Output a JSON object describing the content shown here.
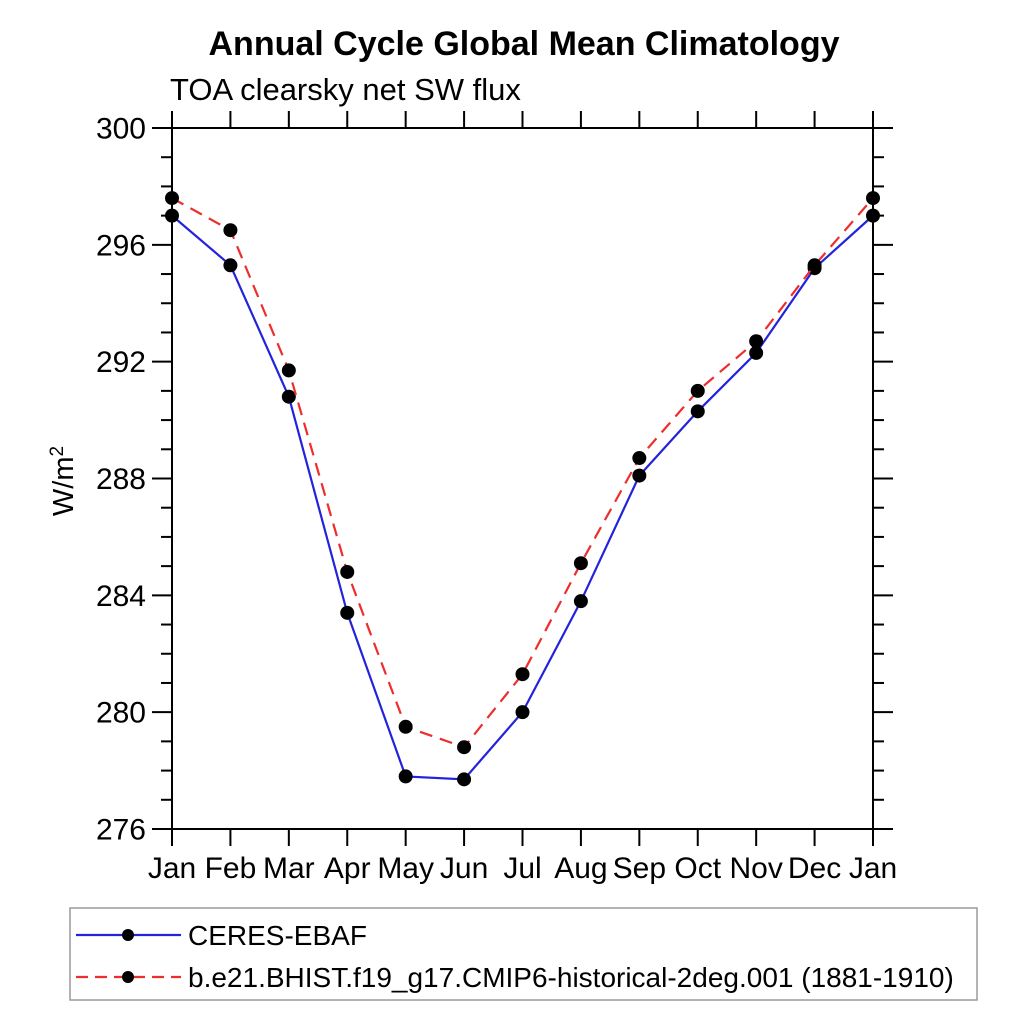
{
  "chart_data": {
    "type": "line",
    "title": "Annual Cycle Global Mean Climatology",
    "subtitle": "TOA clearsky net SW flux",
    "ylabel": "W/m²",
    "ylabel_base": "W/m",
    "ylabel_exp": "2",
    "xlabel": "",
    "categories": [
      "Jan",
      "Feb",
      "Mar",
      "Apr",
      "May",
      "Jun",
      "Jul",
      "Aug",
      "Sep",
      "Oct",
      "Nov",
      "Dec",
      "Jan"
    ],
    "series": [
      {
        "name": "CERES-EBAF",
        "color": "#2323dc",
        "line_style": "solid",
        "marker": "filled-circle",
        "marker_color": "#000000",
        "values": [
          297.0,
          295.3,
          290.8,
          283.4,
          277.8,
          277.7,
          280.0,
          283.8,
          288.1,
          290.3,
          292.3,
          295.2,
          297.0
        ]
      },
      {
        "name": "b.e21.BHIST.f19_g17.CMIP6-historical-2deg.001 (1881-1910)",
        "color": "#ee2d2d",
        "line_style": "dashed",
        "marker": "filled-circle",
        "marker_color": "#000000",
        "values": [
          297.6,
          296.5,
          291.7,
          284.8,
          279.5,
          278.8,
          281.3,
          285.1,
          288.7,
          291.0,
          292.7,
          295.3,
          297.6
        ]
      }
    ],
    "ylim": [
      276,
      300
    ],
    "y_major_step": 4,
    "y_minor_step": 1,
    "y_major_tick_labels": [
      "276",
      "280",
      "284",
      "288",
      "292",
      "296",
      "300"
    ],
    "grid": false,
    "legend_position": "bottom-left-box",
    "colors": {
      "axis": "#000000",
      "text": "#000000",
      "legend_border": "#9a9a9a",
      "background": "#ffffff"
    }
  }
}
